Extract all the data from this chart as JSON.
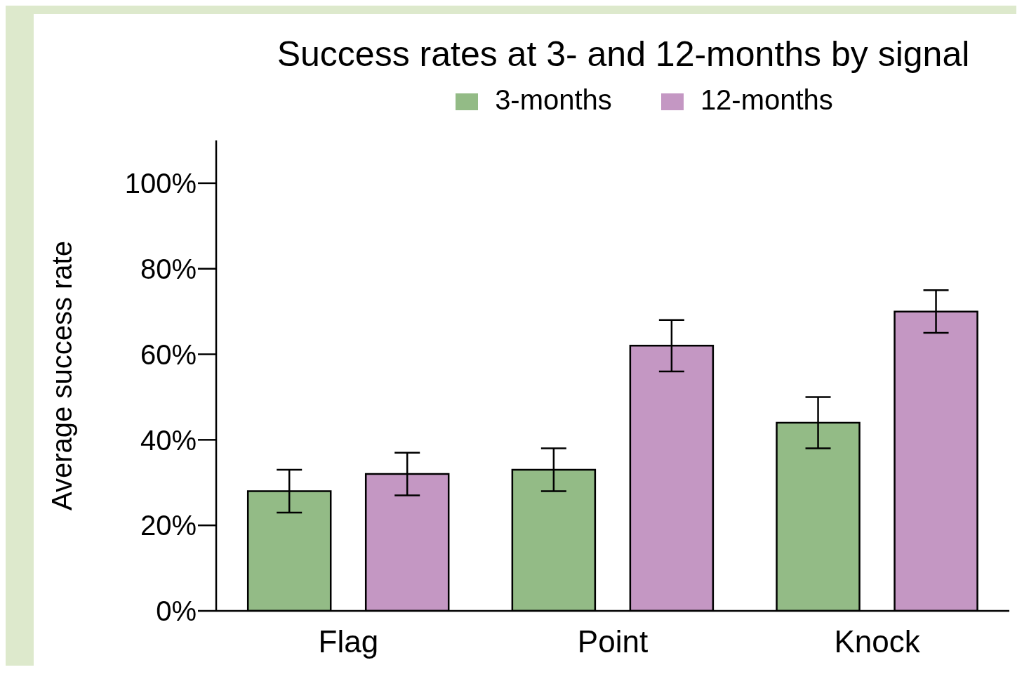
{
  "chart_data": {
    "type": "bar",
    "title": "Success rates at 3- and 12-months by signal",
    "ylabel": "Average success rate",
    "categories": [
      "Flag",
      "Point",
      "Knock"
    ],
    "series": [
      {
        "name": "3-months",
        "color": "#93bb86",
        "values": [
          28,
          33,
          44
        ],
        "errors": [
          5,
          5,
          6
        ]
      },
      {
        "name": "12-months",
        "color": "#c497c3",
        "values": [
          32,
          62,
          70
        ],
        "errors": [
          5,
          6,
          5
        ]
      }
    ],
    "ylim": [
      0,
      110
    ],
    "yticks": [
      {
        "value": 0,
        "label": "0%"
      },
      {
        "value": 20,
        "label": "20%"
      },
      {
        "value": 40,
        "label": "40%"
      },
      {
        "value": 60,
        "label": "60%"
      },
      {
        "value": 80,
        "label": "80%"
      },
      {
        "value": 100,
        "label": "100%"
      }
    ],
    "grid": false,
    "legend": "top"
  }
}
